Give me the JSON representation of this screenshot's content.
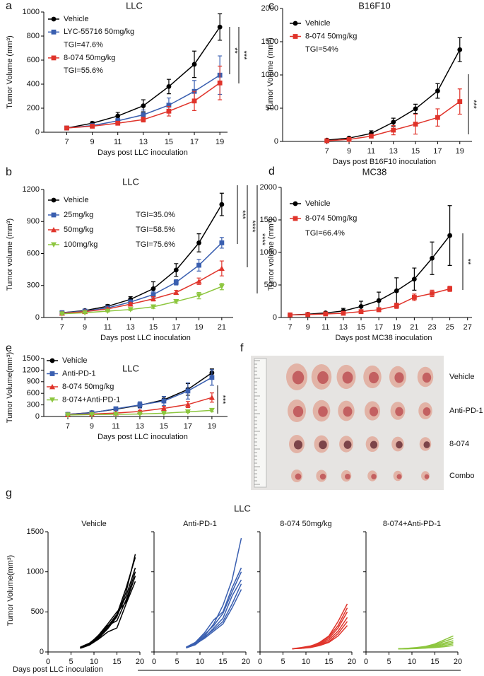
{
  "chart_data": [
    {
      "panel": "a",
      "type": "line",
      "title": "LLC",
      "x_label": "Days post LLC inoculation",
      "y_label": "Tumor Volume (mm³)",
      "x": [
        7,
        9,
        11,
        13,
        15,
        17,
        19
      ],
      "xlim": [
        5.2,
        19.6
      ],
      "xticks": [
        7,
        9,
        11,
        13,
        15,
        17,
        19
      ],
      "ylim": [
        0,
        1000
      ],
      "yticks": [
        0,
        200,
        400,
        600,
        800,
        1000
      ],
      "series": [
        {
          "name": "Vehicle",
          "color": "#000000",
          "marker": "circle",
          "values": [
            35,
            75,
            135,
            220,
            380,
            565,
            875
          ],
          "errors": [
            8,
            12,
            30,
            50,
            60,
            110,
            110
          ]
        },
        {
          "name": "LYC-55716 50mg/kg",
          "color": "#3a5fb0",
          "marker": "square",
          "values": [
            35,
            55,
            95,
            145,
            225,
            340,
            475
          ],
          "errors": [
            5,
            10,
            20,
            40,
            60,
            90,
            160
          ],
          "annotation": "TGI=47.6%"
        },
        {
          "name": "8-074 50mg/kg",
          "color": "#e0342b",
          "marker": "square",
          "values": [
            35,
            50,
            75,
            105,
            175,
            260,
            410
          ],
          "errors": [
            5,
            10,
            15,
            20,
            40,
            80,
            140
          ],
          "annotation": "TGI=55.6%"
        }
      ],
      "significance": [
        "**",
        "***"
      ]
    },
    {
      "panel": "b",
      "type": "line",
      "title": "LLC",
      "x_label": "Days post LLC inoculation",
      "y_label": "Tumor volume (mm³)",
      "x": [
        7,
        9,
        11,
        13,
        15,
        17,
        19,
        21
      ],
      "xlim": [
        5.4,
        22
      ],
      "xticks": [
        7,
        9,
        11,
        13,
        15,
        17,
        19,
        21
      ],
      "ylim": [
        0,
        1200
      ],
      "yticks": [
        0,
        300,
        600,
        900,
        1200
      ],
      "series": [
        {
          "name": "Vehicle",
          "color": "#000000",
          "marker": "circle",
          "values": [
            45,
            65,
            105,
            170,
            270,
            445,
            700,
            1060
          ],
          "errors": [
            8,
            10,
            15,
            25,
            65,
            60,
            85,
            105
          ]
        },
        {
          "name": "25mg/kg",
          "color": "#3a5fb0",
          "marker": "square",
          "values": [
            45,
            60,
            90,
            145,
            215,
            330,
            490,
            700
          ],
          "errors": [
            5,
            8,
            12,
            20,
            30,
            25,
            55,
            50
          ],
          "annotation": "TGI=35.0%"
        },
        {
          "name": "50mg/kg",
          "color": "#e0342b",
          "marker": "triangle",
          "values": [
            40,
            55,
            80,
            125,
            175,
            235,
            340,
            460
          ],
          "errors": [
            5,
            8,
            10,
            15,
            20,
            20,
            30,
            70
          ],
          "annotation": "TGI=58.5%"
        },
        {
          "name": "100mg/kg",
          "color": "#8dc63f",
          "marker": "down-triangle",
          "values": [
            35,
            45,
            60,
            75,
            100,
            150,
            205,
            290
          ],
          "errors": [
            5,
            5,
            8,
            10,
            15,
            15,
            30,
            30
          ],
          "annotation": "TGI=75.6%"
        }
      ],
      "significance": [
        "***",
        "****",
        "****"
      ]
    },
    {
      "panel": "c",
      "type": "line",
      "title": "B16F10",
      "x_label": "Days post B16F10 inoculation",
      "y_label": "Tumor Volume (mm³)",
      "x": [
        7,
        9,
        11,
        13,
        15,
        17,
        19
      ],
      "xlim": [
        3,
        20.1
      ],
      "xticks": [
        7,
        9,
        11,
        13,
        15,
        17,
        19
      ],
      "ylim": [
        0,
        2000
      ],
      "yticks": [
        0,
        500,
        1000,
        1500,
        2000
      ],
      "series": [
        {
          "name": "Vehicle",
          "color": "#000000",
          "marker": "circle",
          "values": [
            20,
            50,
            120,
            290,
            490,
            760,
            1380
          ],
          "errors": [
            10,
            15,
            40,
            60,
            70,
            110,
            180
          ]
        },
        {
          "name": "8-074 50mg/kg",
          "color": "#e0342b",
          "marker": "square",
          "values": [
            10,
            30,
            80,
            170,
            260,
            360,
            600
          ],
          "errors": [
            5,
            10,
            25,
            70,
            150,
            130,
            190
          ],
          "annotation": "TGI=54%"
        }
      ],
      "significance": [
        "***"
      ]
    },
    {
      "panel": "d",
      "type": "line",
      "title": "MC38",
      "x_label": "Days post MC38 inoculation",
      "y_label": "Tumor volume (mm³)",
      "x": [
        7,
        9,
        11,
        13,
        15,
        17,
        19,
        21,
        23,
        25
      ],
      "xlim": [
        6,
        27.5
      ],
      "xticks": [
        7,
        9,
        11,
        13,
        15,
        17,
        19,
        21,
        23,
        25,
        27
      ],
      "ylim": [
        0,
        2000
      ],
      "yticks": [
        0,
        500,
        1000,
        1500,
        2000
      ],
      "series": [
        {
          "name": "Vehicle",
          "color": "#000000",
          "marker": "circle",
          "values": [
            40,
            50,
            70,
            100,
            170,
            260,
            410,
            590,
            910,
            1260
          ],
          "errors": [
            5,
            10,
            15,
            40,
            80,
            130,
            200,
            170,
            250,
            460
          ]
        },
        {
          "name": "8-074 50mg/kg",
          "color": "#e0342b",
          "marker": "square",
          "values": [
            40,
            45,
            55,
            65,
            90,
            120,
            180,
            310,
            370,
            440
          ],
          "errors": [
            5,
            5,
            8,
            10,
            20,
            30,
            40,
            50,
            50,
            40
          ],
          "annotation": "TGI=66.4%"
        }
      ],
      "significance": [
        "**"
      ]
    },
    {
      "panel": "e",
      "type": "line",
      "title": "LLC",
      "x_label": "Days post LLC inoculation",
      "y_label": "Tumor Volume(mm³)",
      "x": [
        7,
        9,
        11,
        13,
        15,
        17,
        19
      ],
      "xlim": [
        5,
        20.3
      ],
      "xticks": [
        7,
        9,
        11,
        13,
        15,
        17,
        19
      ],
      "ylim": [
        0,
        1500
      ],
      "yticks": [
        0,
        300,
        600,
        900,
        1200,
        1500
      ],
      "series": [
        {
          "name": "Vehicle",
          "color": "#000000",
          "marker": "circle",
          "values": [
            55,
            100,
            190,
            290,
            430,
            700,
            1130
          ],
          "errors": [
            10,
            15,
            40,
            60,
            80,
            150,
            100
          ]
        },
        {
          "name": "Anti-PD-1",
          "color": "#3a5fb0",
          "marker": "square",
          "values": [
            55,
            95,
            200,
            300,
            400,
            660,
            1010
          ],
          "errors": [
            10,
            15,
            40,
            80,
            120,
            210,
            200
          ]
        },
        {
          "name": "8-074 50mg/kg",
          "color": "#e0342b",
          "marker": "triangle",
          "values": [
            45,
            65,
            90,
            130,
            210,
            310,
            490
          ],
          "errors": [
            5,
            10,
            15,
            30,
            50,
            80,
            120
          ]
        },
        {
          "name": "8-074+Anti-PD-1",
          "color": "#8dc63f",
          "marker": "down-triangle",
          "values": [
            40,
            50,
            55,
            65,
            85,
            120,
            160
          ],
          "errors": [
            5,
            5,
            8,
            10,
            15,
            20,
            40
          ]
        }
      ],
      "significance": [
        "***"
      ]
    },
    {
      "panel": "f",
      "type": "image",
      "labels": [
        "Vehicle",
        "Anti-PD-1",
        "8-074",
        "Combo"
      ]
    },
    {
      "panel": "g",
      "type": "line",
      "title": "LLC",
      "x_label": "Days post LLC inoculation",
      "y_label": "Tumor Volume(mm³)",
      "x": [
        7,
        9,
        11,
        13,
        15,
        17,
        19
      ],
      "xlim": [
        0,
        20
      ],
      "xticks": [
        0,
        5,
        10,
        15,
        20
      ],
      "ylim": [
        0,
        1500
      ],
      "yticks": [
        0,
        500,
        1000,
        1500
      ],
      "subplots": [
        {
          "title": "Vehicle",
          "color": "#000000",
          "series": [
            {
              "values": [
                50,
                90,
                170,
                290,
                440,
                750,
                1220
              ]
            },
            {
              "values": [
                55,
                100,
                190,
                320,
                470,
                800,
                1180
              ]
            },
            {
              "values": [
                50,
                95,
                180,
                300,
                450,
                700,
                1050
              ]
            },
            {
              "values": [
                60,
                110,
                200,
                330,
                390,
                650,
                1000
              ]
            },
            {
              "values": [
                50,
                100,
                210,
                350,
                500,
                620,
                950
              ]
            },
            {
              "values": [
                45,
                85,
                160,
                250,
                300,
                600,
                880
              ]
            }
          ]
        },
        {
          "title": "Anti-PD-1",
          "color": "#3a5fb0",
          "series": [
            {
              "values": [
                50,
                100,
                200,
                350,
                580,
                900,
                1420
              ]
            },
            {
              "values": [
                60,
                120,
                240,
                400,
                500,
                800,
                1050
              ]
            },
            {
              "values": [
                55,
                110,
                220,
                330,
                480,
                750,
                1000
              ]
            },
            {
              "values": [
                50,
                90,
                180,
                300,
                420,
                700,
                900
              ]
            },
            {
              "values": [
                60,
                110,
                190,
                280,
                380,
                600,
                850
              ]
            },
            {
              "values": [
                50,
                100,
                170,
                260,
                350,
                550,
                780
              ]
            }
          ]
        },
        {
          "title": "8-074 50mg/kg",
          "color": "#e0342b",
          "series": [
            {
              "values": [
                40,
                50,
                70,
                120,
                200,
                380,
                600
              ]
            },
            {
              "values": [
                40,
                55,
                75,
                110,
                190,
                330,
                550
              ]
            },
            {
              "values": [
                40,
                50,
                70,
                100,
                170,
                300,
                500
              ]
            },
            {
              "values": [
                40,
                50,
                65,
                90,
                150,
                260,
                430
              ]
            },
            {
              "values": [
                40,
                45,
                60,
                85,
                130,
                230,
                380
              ]
            },
            {
              "values": [
                40,
                45,
                55,
                80,
                120,
                200,
                330
              ]
            }
          ]
        },
        {
          "title": "8-074+Anti-PD-1",
          "color": "#8dc63f",
          "series": [
            {
              "values": [
                40,
                45,
                55,
                70,
                100,
                150,
                200
              ]
            },
            {
              "values": [
                40,
                45,
                50,
                65,
                90,
                130,
                170
              ]
            },
            {
              "values": [
                40,
                42,
                50,
                60,
                80,
                110,
                140
              ]
            },
            {
              "values": [
                40,
                42,
                48,
                55,
                70,
                95,
                120
              ]
            },
            {
              "values": [
                40,
                40,
                45,
                50,
                60,
                80,
                100
              ]
            },
            {
              "values": [
                40,
                40,
                42,
                48,
                55,
                65,
                80
              ]
            }
          ]
        }
      ]
    }
  ]
}
